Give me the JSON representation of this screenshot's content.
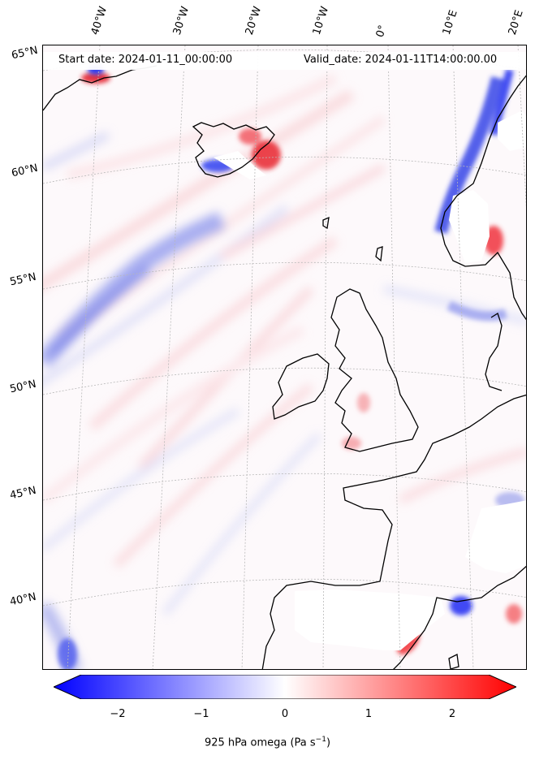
{
  "header": {
    "start_date": "Start date: 2024-01-11_00:00:00",
    "valid_date": "Valid_date: 2024-01-11T14:00:00.00"
  },
  "longitude_labels": [
    "40°W",
    "30°W",
    "20°W",
    "10°W",
    "0°",
    "10°E",
    "20°E"
  ],
  "latitude_labels": [
    "65°N",
    "60°N",
    "55°N",
    "50°N",
    "45°N",
    "40°N"
  ],
  "colorbar": {
    "ticks": [
      "−2",
      "−1",
      "0",
      "1",
      "2"
    ],
    "label": "925 hPa omega (Pa s",
    "label_sup": "−1",
    "label_end": ")",
    "min_color": "#0000ff",
    "mid_color": "#ffffff",
    "max_color": "#ff0000"
  },
  "colors": {
    "coastline": "#000000",
    "gridline": "#b0b0b0",
    "missing_terrain": "#ffffff"
  }
}
